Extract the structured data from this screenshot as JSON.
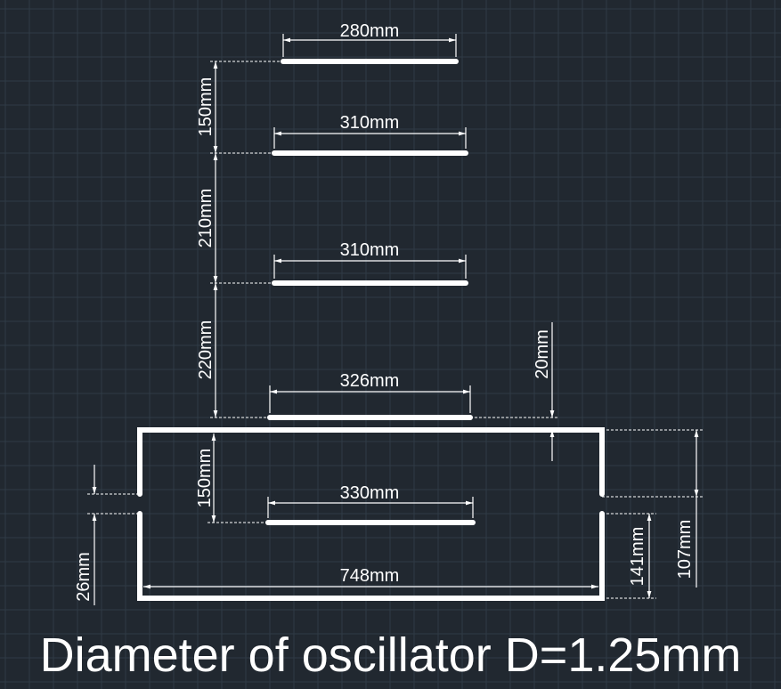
{
  "colors": {
    "background": "#212830",
    "grid": "#2f3a46",
    "drawing": "#ffffff"
  },
  "dimensions": {
    "element_1_length": "280mm",
    "element_2_length": "310mm",
    "element_3_length": "310mm",
    "element_4_length": "326mm",
    "element_5_length": "330mm",
    "spacing_1_2": "150mm",
    "spacing_2_3": "210mm",
    "spacing_3_4": "220mm",
    "spacing_4_5": "150mm",
    "frame_gap": "20mm",
    "frame_width": "748mm",
    "feed_gap": "26mm",
    "lower_height": "141mm",
    "right_height": "107mm"
  },
  "caption": "Diameter of oscillator D=1.25mm"
}
